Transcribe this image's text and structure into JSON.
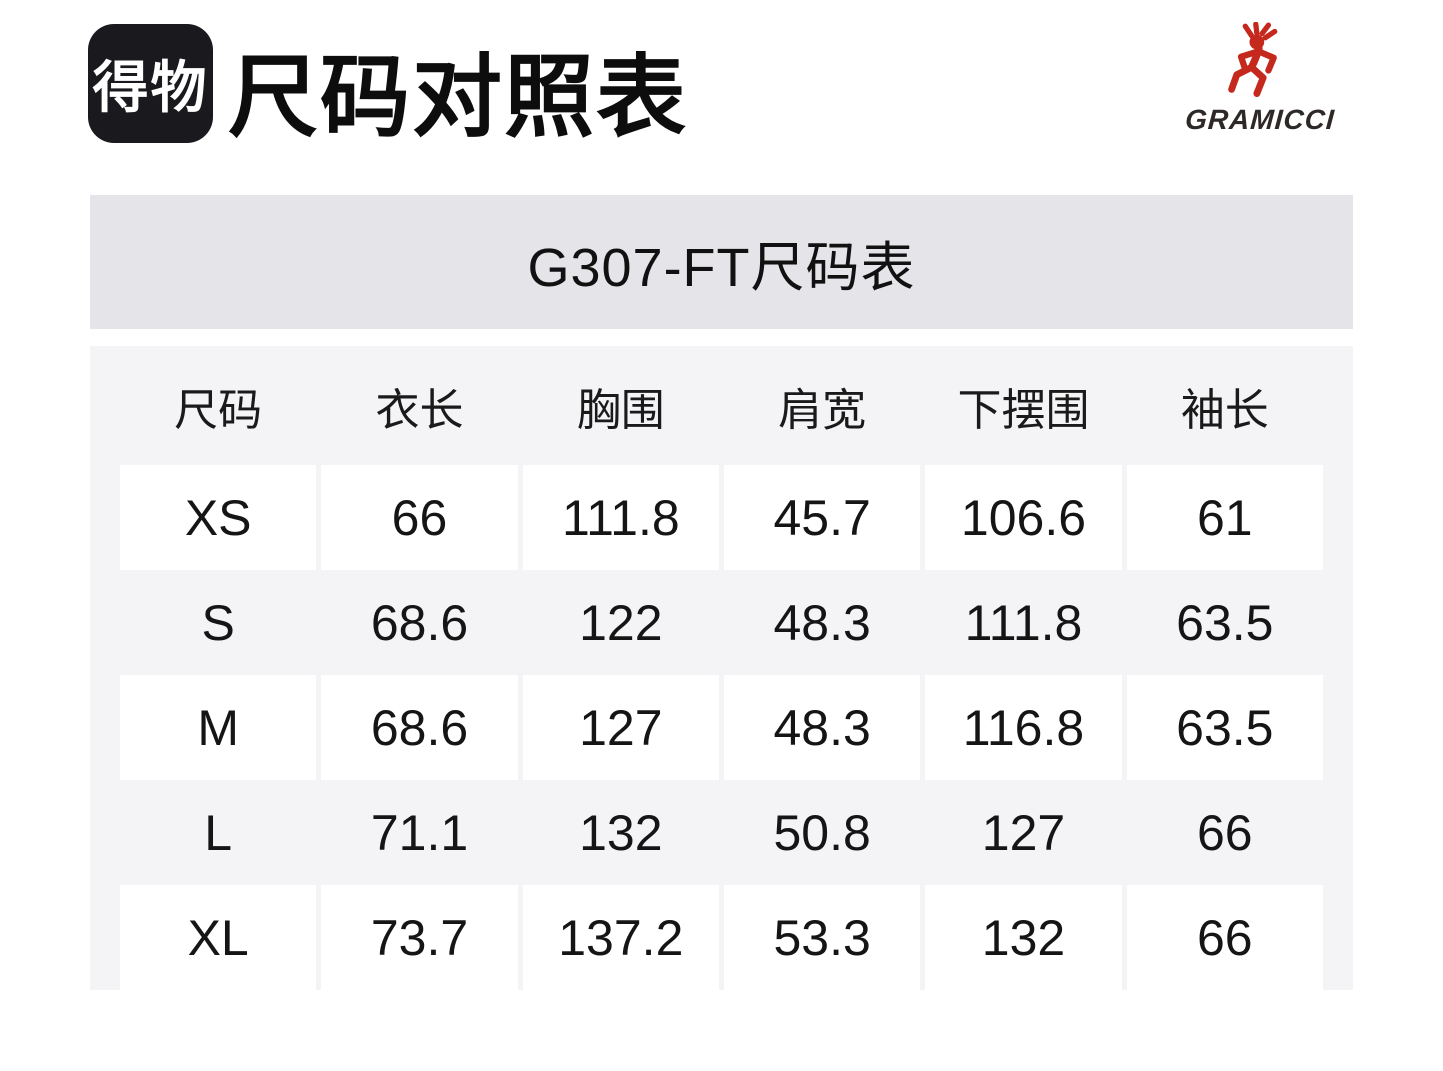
{
  "header": {
    "app_logo_text": "得物",
    "title": "尺码对照表",
    "brand_name": "GRAMICCI"
  },
  "banner": {
    "title": "G307-FT尺码表"
  },
  "chart_data": {
    "type": "table",
    "title": "G307-FT尺码表",
    "columns": [
      "尺码",
      "衣长",
      "胸围",
      "肩宽",
      "下摆围",
      "袖长"
    ],
    "rows": [
      [
        "XS",
        "66",
        "111.8",
        "45.7",
        "106.6",
        "61"
      ],
      [
        "S",
        "68.6",
        "122",
        "48.3",
        "111.8",
        "63.5"
      ],
      [
        "M",
        "68.6",
        "127",
        "48.3",
        "116.8",
        "63.5"
      ],
      [
        "L",
        "71.1",
        "132",
        "50.8",
        "127",
        "66"
      ],
      [
        "XL",
        "73.7",
        "137.2",
        "53.3",
        "132",
        "66"
      ]
    ],
    "layout_hints": {
      "zebra_rows_white": [
        "XS",
        "M",
        "XL"
      ],
      "plain_rows_on_gray": [
        "S",
        "L"
      ]
    }
  },
  "colors": {
    "app_logo_bg": "#1a1a1e",
    "banner_bg": "#e4e4e9",
    "table_bg": "#f4f4f7",
    "zebra_cell_bg": "#ffffff",
    "text": "#151515",
    "brand_red": "#c5281c",
    "brand_text": "#2e2927"
  }
}
